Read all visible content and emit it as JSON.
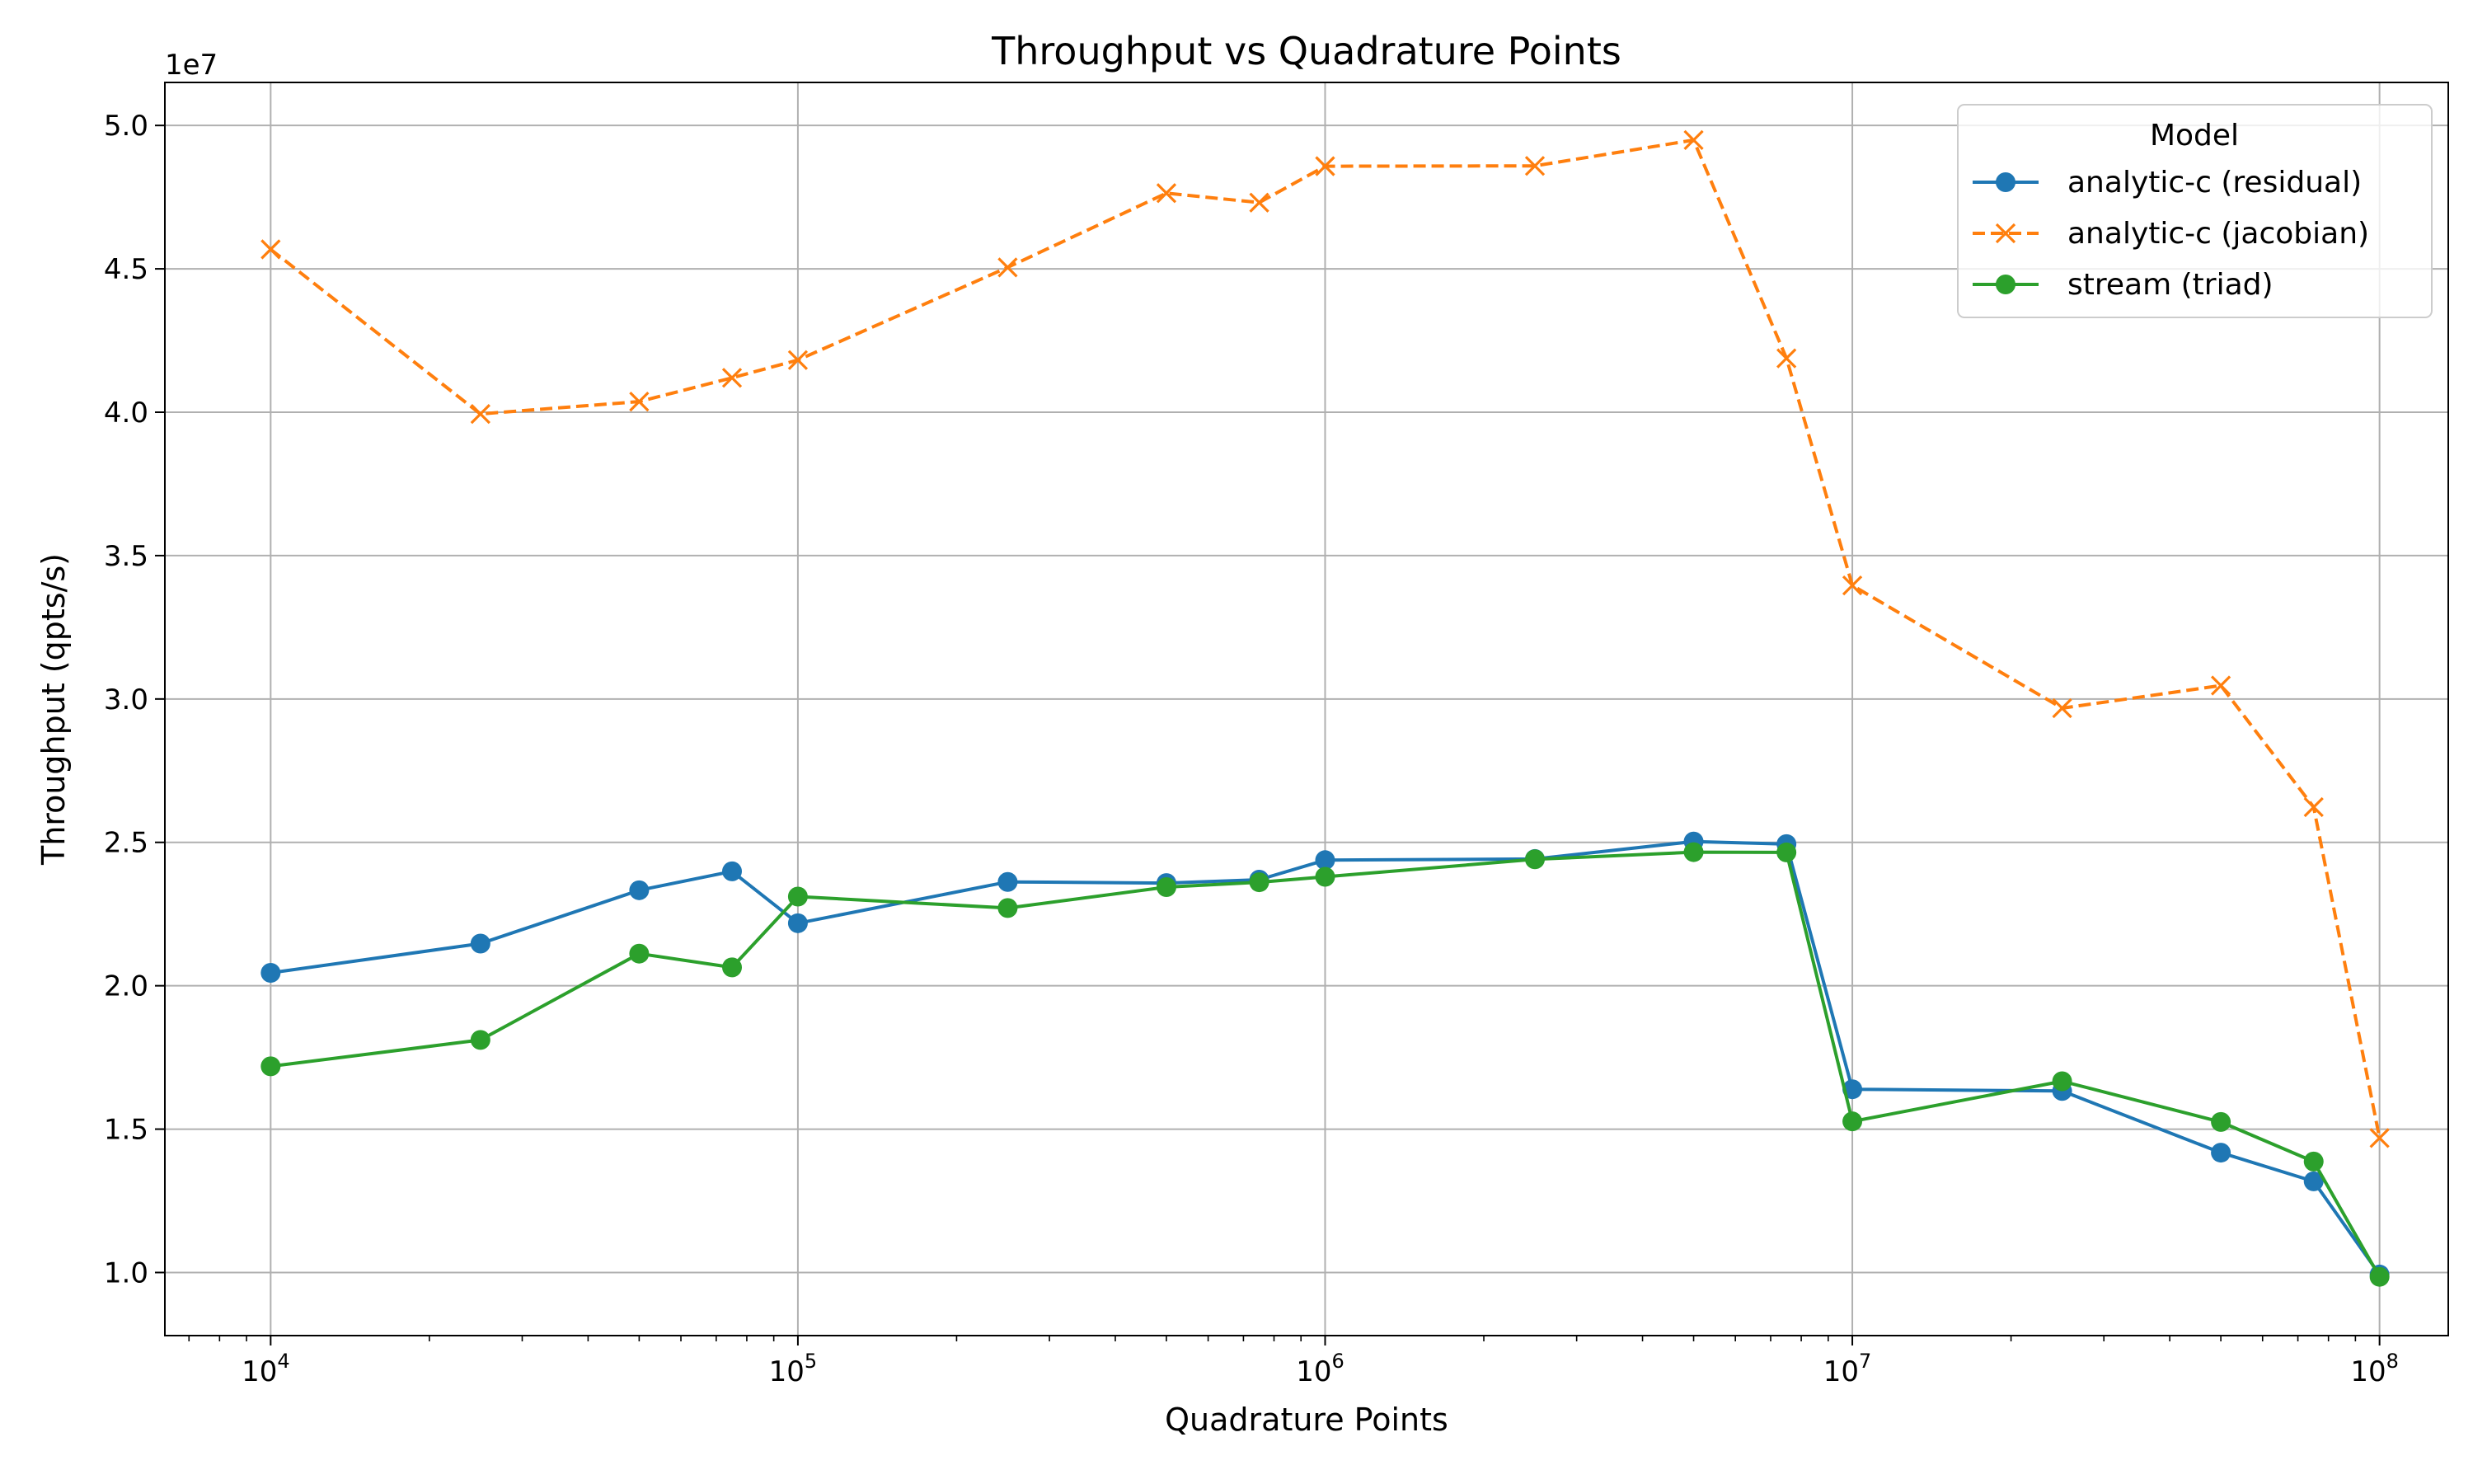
{
  "chart_data": {
    "type": "line",
    "title": "Throughput vs Quadrature Points",
    "xlabel": "Quadrature Points",
    "ylabel": "Throughput (qpts/s)",
    "y_offset_label": "1e7",
    "x_scale": "log",
    "xlim": [
      6300,
      135000000
    ],
    "ylim": [
      7800000,
      51500000
    ],
    "grid": true,
    "legend": {
      "title": "Model",
      "placement": "top-right"
    },
    "x_ticks": [
      {
        "value": 10000,
        "base": "10",
        "exp": "4"
      },
      {
        "value": 100000,
        "base": "10",
        "exp": "5"
      },
      {
        "value": 1000000,
        "base": "10",
        "exp": "6"
      },
      {
        "value": 10000000,
        "base": "10",
        "exp": "7"
      },
      {
        "value": 100000000,
        "base": "10",
        "exp": "8"
      }
    ],
    "y_ticks": [
      {
        "value": 10000000,
        "label": "1.0"
      },
      {
        "value": 15000000,
        "label": "1.5"
      },
      {
        "value": 20000000,
        "label": "2.0"
      },
      {
        "value": 25000000,
        "label": "2.5"
      },
      {
        "value": 30000000,
        "label": "3.0"
      },
      {
        "value": 35000000,
        "label": "3.5"
      },
      {
        "value": 40000000,
        "label": "4.0"
      },
      {
        "value": 45000000,
        "label": "4.5"
      },
      {
        "value": 50000000,
        "label": "5.0"
      }
    ],
    "x": [
      10000,
      25000,
      50000,
      75000,
      100000,
      250000,
      500000,
      750000,
      1000000,
      2500000,
      5000000,
      7500000,
      10000000,
      25000000,
      50000000,
      75000000,
      100000000
    ],
    "series": [
      {
        "name": "analytic-c (residual)",
        "color": "#1f77b4",
        "marker": "circle",
        "linestyle": "solid",
        "values": [
          20450000,
          21470000,
          23330000,
          23990000,
          22180000,
          23620000,
          23580000,
          23700000,
          24380000,
          24420000,
          25030000,
          24940000,
          16390000,
          16330000,
          14180000,
          13180000,
          9930000
        ]
      },
      {
        "name": "analytic-c (jacobian)",
        "color": "#ff7f0e",
        "marker": "x",
        "linestyle": "dashed",
        "values": [
          45680000,
          39940000,
          40370000,
          41200000,
          41820000,
          45050000,
          47640000,
          47310000,
          48580000,
          48590000,
          49490000,
          41880000,
          33960000,
          29680000,
          30470000,
          26230000,
          14690000
        ]
      },
      {
        "name": "stream (triad)",
        "color": "#2ca02c",
        "marker": "circle",
        "linestyle": "solid",
        "values": [
          17190000,
          18110000,
          21120000,
          20640000,
          23110000,
          22710000,
          23440000,
          23610000,
          23800000,
          24410000,
          24660000,
          24650000,
          15270000,
          16670000,
          15250000,
          13870000,
          9850000
        ]
      }
    ]
  }
}
